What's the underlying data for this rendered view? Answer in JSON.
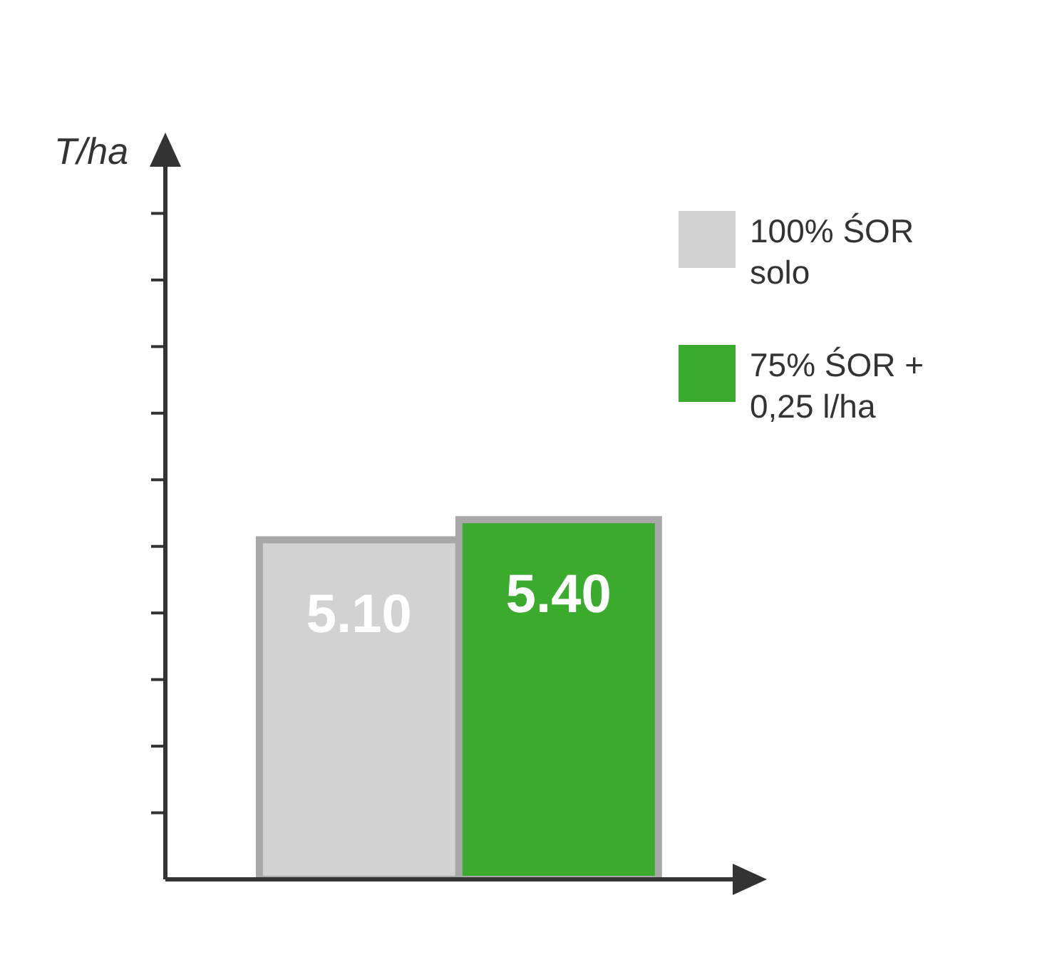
{
  "chart_data": {
    "type": "bar",
    "ylabel": "T/ha",
    "categories": [
      null
    ],
    "series": [
      {
        "name": "100% ŚOR solo",
        "color": "#d3d2d2",
        "values": [
          5.1
        ],
        "value_labels": [
          "5.10"
        ]
      },
      {
        "name": "75% ŚOR + 0,25 l/ha",
        "color": "#3aab2c",
        "values": [
          5.4
        ],
        "value_labels": [
          "5.40"
        ]
      }
    ],
    "ylim": [
      0,
      11
    ],
    "yticks": [
      {
        "value": 1,
        "label": null
      },
      {
        "value": 2,
        "label": null
      },
      {
        "value": 3,
        "label": null
      },
      {
        "value": 4,
        "label": null
      },
      {
        "value": 5,
        "label": null
      },
      {
        "value": 6,
        "label": null
      },
      {
        "value": 7,
        "label": null
      },
      {
        "value": 8,
        "label": null
      },
      {
        "value": 9,
        "label": null
      },
      {
        "value": 10,
        "label": null
      }
    ],
    "tick_labels": false,
    "grid": false,
    "legend": "right"
  }
}
